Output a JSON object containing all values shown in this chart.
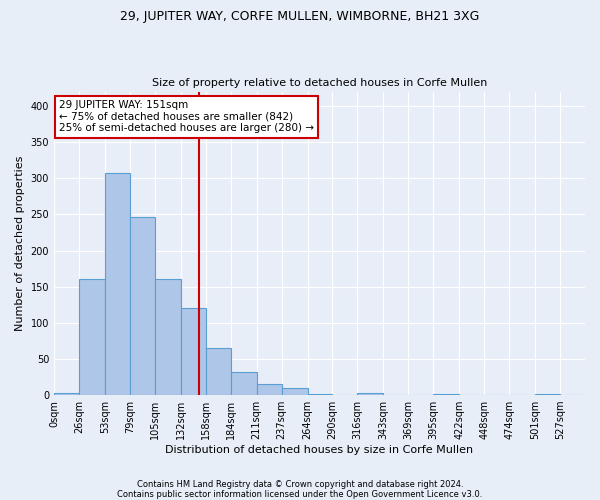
{
  "title": "29, JUPITER WAY, CORFE MULLEN, WIMBORNE, BH21 3XG",
  "subtitle": "Size of property relative to detached houses in Corfe Mullen",
  "xlabel": "Distribution of detached houses by size in Corfe Mullen",
  "ylabel": "Number of detached properties",
  "footnote1": "Contains HM Land Registry data © Crown copyright and database right 2024.",
  "footnote2": "Contains public sector information licensed under the Open Government Licence v3.0.",
  "bin_labels": [
    "0sqm",
    "26sqm",
    "53sqm",
    "79sqm",
    "105sqm",
    "132sqm",
    "158sqm",
    "184sqm",
    "211sqm",
    "237sqm",
    "264sqm",
    "290sqm",
    "316sqm",
    "343sqm",
    "369sqm",
    "395sqm",
    "422sqm",
    "448sqm",
    "474sqm",
    "501sqm",
    "527sqm"
  ],
  "bar_values": [
    3,
    160,
    307,
    246,
    160,
    120,
    65,
    32,
    15,
    10,
    2,
    0,
    3,
    0,
    0,
    2,
    0,
    0,
    0,
    2,
    0
  ],
  "bar_color": "#aec6e8",
  "bar_edge_color": "#5a9fd4",
  "background_color": "#e8eef8",
  "grid_color": "#ffffff",
  "vline_x": 151,
  "vline_color": "#cc0000",
  "annotation_line1": "29 JUPITER WAY: 151sqm",
  "annotation_line2": "← 75% of detached houses are smaller (842)",
  "annotation_line3": "25% of semi-detached houses are larger (280) →",
  "annotation_box_color": "#ffffff",
  "annotation_box_edge": "#cc0000",
  "ylim": [
    0,
    420
  ],
  "yticks": [
    0,
    50,
    100,
    150,
    200,
    250,
    300,
    350,
    400
  ],
  "bin_edges": [
    0,
    26,
    53,
    79,
    105,
    132,
    158,
    184,
    211,
    237,
    264,
    290,
    316,
    343,
    369,
    395,
    422,
    448,
    474,
    501,
    527,
    553
  ],
  "title_fontsize": 9,
  "subtitle_fontsize": 8,
  "ylabel_fontsize": 8,
  "xlabel_fontsize": 8,
  "tick_fontsize": 7,
  "footnote_fontsize": 6,
  "annotation_fontsize": 7.5
}
